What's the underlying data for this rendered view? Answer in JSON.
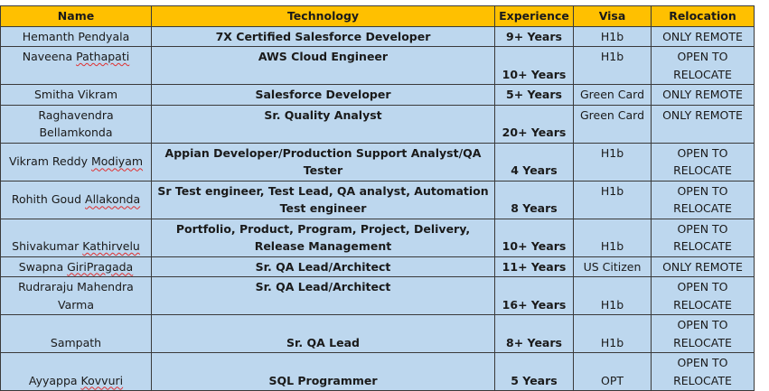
{
  "colors": {
    "header_bg": "#ffc000",
    "cell_bg": "#bdd7ee",
    "border": "#3a3a3a"
  },
  "table": {
    "headers": [
      "Name",
      "Technology",
      "Experience",
      "Visa",
      "Relocation"
    ],
    "rows": [
      [
        "Hemanth Pendyala",
        "7X Certified Salesforce Developer",
        "9+ Years",
        "H1b",
        "ONLY REMOTE"
      ],
      [
        "Naveena Pathapati",
        "AWS Cloud Engineer",
        "10+ Years",
        "H1b",
        "OPEN TO RELOCATE"
      ],
      [
        "Smitha Vikram",
        "Salesforce Developer",
        "5+ Years",
        "Green Card",
        "ONLY REMOTE"
      ],
      [
        "Raghavendra Bellamkonda",
        "Sr. Quality Analyst",
        "20+ Years",
        "Green Card",
        "ONLY REMOTE"
      ],
      [
        "Vikram Reddy Modiyam",
        "Appian Developer/Production Support Analyst/QA Tester",
        "4 Years",
        "H1b",
        "OPEN TO RELOCATE"
      ],
      [
        "Rohith Goud Allakonda",
        "Sr Test engineer, Test Lead, QA analyst, Automation Test engineer",
        "8 Years",
        "H1b",
        "OPEN TO RELOCATE"
      ],
      [
        "Shivakumar Kathirvelu",
        "Portfolio, Product, Program, Project, Delivery, Release Management",
        "10+ Years",
        "H1b",
        "OPEN TO RELOCATE"
      ],
      [
        "Swapna GiriPragada",
        "Sr. QA Lead/Architect",
        "11+ Years",
        "US Citizen",
        "ONLY REMOTE"
      ],
      [
        "Rudraraju Mahendra Varma",
        "Sr. QA Lead/Architect",
        "16+ Years",
        "H1b",
        "OPEN TO RELOCATE"
      ],
      [
        "Sampath",
        "Sr. QA Lead",
        "8+ Years",
        "H1b",
        "OPEN TO RELOCATE"
      ],
      [
        "Ayyappa Kovvuri",
        "SQL Programmer",
        "5 Years",
        "OPT",
        "OPEN TO RELOCATE"
      ]
    ],
    "spellcheck_flagged": [
      "Pathapati",
      "Modiyam",
      "Allakonda",
      "Kathirvelu",
      "GiriPragada",
      "Kovvuri"
    ]
  }
}
